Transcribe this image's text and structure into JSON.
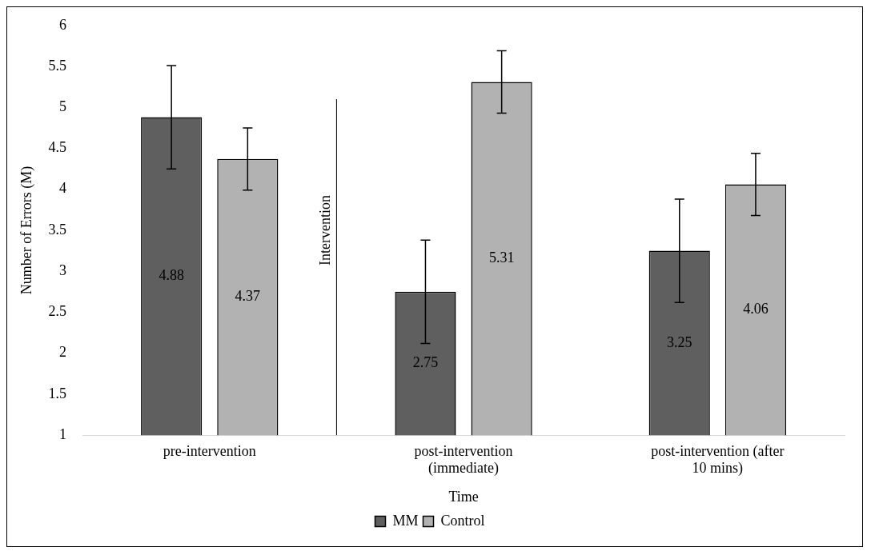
{
  "chart_data": {
    "type": "bar",
    "xlabel": "Time",
    "ylabel": "Number of Errors (M)",
    "categories": [
      "pre-intervention",
      "post-intervention (immediate)",
      "post-intervention (after 10 mins)"
    ],
    "series": [
      {
        "name": "MM",
        "color": "#5f5f5f",
        "values": [
          4.88,
          2.75,
          3.25
        ],
        "errors": [
          0.63,
          0.63,
          0.63
        ]
      },
      {
        "name": "Control",
        "color": "#b2b2b2",
        "values": [
          4.37,
          5.31,
          4.06
        ],
        "errors": [
          0.38,
          0.38,
          0.38
        ]
      }
    ],
    "ylim": [
      1,
      6
    ],
    "yticks": [
      1,
      1.5,
      2,
      2.5,
      3,
      3.5,
      4,
      4.5,
      5,
      5.5,
      6
    ],
    "annotations": [
      "Intervention"
    ],
    "data_labels": true,
    "legend": "bottom",
    "grid": false
  }
}
